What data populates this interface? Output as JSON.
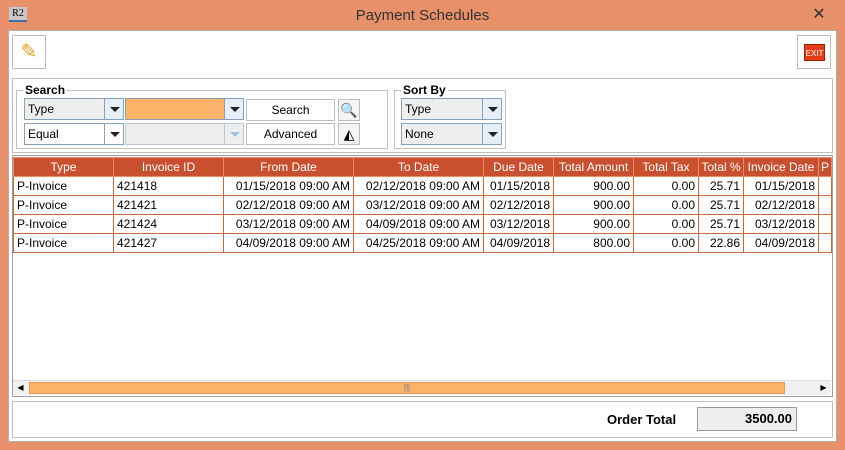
{
  "window": {
    "title": "Payment Schedules",
    "app_icon": "R2",
    "close": "✕"
  },
  "toolbar": {
    "edit_icon": "pencil-icon",
    "exit_label": "EXIT"
  },
  "search": {
    "legend": "Search",
    "field": "Type",
    "value": "",
    "operator": "Equal",
    "operand": "",
    "search_label": "Search",
    "advanced_label": "Advanced"
  },
  "sort": {
    "legend": "Sort By",
    "field": "Type",
    "order": "None"
  },
  "table": {
    "columns": [
      "Type",
      "Invoice ID",
      "From Date",
      "To Date",
      "Due Date",
      "Total Amount",
      "Total Tax",
      "Total %",
      "Invoice Date",
      "P"
    ],
    "rows": [
      [
        "P-Invoice",
        "421418",
        "01/15/2018 09:00 AM",
        "02/12/2018 09:00 AM",
        "01/15/2018",
        "900.00",
        "0.00",
        "25.71",
        "01/15/2018",
        ""
      ],
      [
        "P-Invoice",
        "421421",
        "02/12/2018 09:00 AM",
        "03/12/2018 09:00 AM",
        "02/12/2018",
        "900.00",
        "0.00",
        "25.71",
        "02/12/2018",
        ""
      ],
      [
        "P-Invoice",
        "421424",
        "03/12/2018 09:00 AM",
        "04/09/2018 09:00 AM",
        "03/12/2018",
        "900.00",
        "0.00",
        "25.71",
        "03/12/2018",
        ""
      ],
      [
        "P-Invoice",
        "421427",
        "04/09/2018 09:00 AM",
        "04/25/2018 09:00 AM",
        "04/09/2018",
        "800.00",
        "0.00",
        "22.86",
        "04/09/2018",
        ""
      ]
    ]
  },
  "footer": {
    "order_total_label": "Order Total",
    "order_total": "3500.00"
  },
  "colors": {
    "accent": "#C9502E",
    "frame": "#E8906A",
    "search_field": "#FDB26A"
  }
}
